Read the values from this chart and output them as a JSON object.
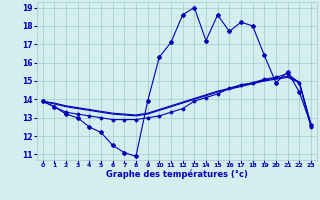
{
  "xlabel": "Graphe des températures (°c)",
  "bg_color": "#d4eeed",
  "grid_color": "#a0cccc",
  "line_color": "#0000bb",
  "xlim": [
    -0.5,
    23.5
  ],
  "ylim": [
    10.7,
    19.3
  ],
  "yticks": [
    11,
    12,
    13,
    14,
    15,
    16,
    17,
    18,
    19
  ],
  "xticks": [
    0,
    1,
    2,
    3,
    4,
    5,
    6,
    7,
    8,
    9,
    10,
    11,
    12,
    13,
    14,
    15,
    16,
    17,
    18,
    19,
    20,
    21,
    22,
    23
  ],
  "series1_x": [
    0,
    1,
    2,
    3,
    4,
    5,
    6,
    7,
    8,
    9,
    10,
    11,
    12,
    13,
    14,
    15,
    16,
    17,
    18,
    19,
    20,
    21,
    22,
    23
  ],
  "series1_y": [
    13.9,
    13.6,
    13.2,
    13.0,
    12.5,
    12.2,
    11.5,
    11.1,
    10.9,
    13.9,
    16.3,
    17.1,
    18.6,
    19.0,
    17.2,
    18.6,
    17.7,
    18.2,
    18.0,
    16.4,
    14.9,
    15.5,
    14.4,
    12.6
  ],
  "series2_x": [
    0,
    2,
    3,
    4,
    5,
    6,
    7,
    8,
    9,
    10,
    11,
    12,
    13,
    14,
    15,
    16,
    17,
    18,
    19,
    20,
    21,
    22,
    23
  ],
  "series2_y": [
    13.9,
    13.3,
    13.2,
    13.1,
    13.0,
    12.9,
    12.9,
    12.9,
    13.0,
    13.1,
    13.3,
    13.5,
    13.9,
    14.1,
    14.3,
    14.6,
    14.8,
    14.9,
    15.1,
    15.2,
    15.4,
    14.9,
    12.5
  ],
  "series3_x": [
    0,
    1,
    2,
    3,
    4,
    5,
    6,
    7,
    8,
    9,
    10,
    11,
    12,
    13,
    14,
    15,
    16,
    17,
    18,
    19,
    20,
    21,
    22,
    23
  ],
  "series3_y": [
    13.9,
    13.75,
    13.6,
    13.5,
    13.4,
    13.3,
    13.2,
    13.15,
    13.1,
    13.2,
    13.4,
    13.6,
    13.8,
    14.0,
    14.2,
    14.4,
    14.55,
    14.7,
    14.85,
    15.0,
    15.1,
    15.2,
    14.9,
    12.6
  ],
  "series4_x": [
    0,
    1,
    2,
    3,
    4,
    5,
    6,
    7,
    8,
    9,
    10,
    11,
    12,
    13,
    14,
    15,
    16,
    17,
    18,
    19,
    20,
    21,
    22,
    23
  ],
  "series4_y": [
    13.9,
    13.8,
    13.65,
    13.55,
    13.45,
    13.35,
    13.25,
    13.2,
    13.15,
    13.25,
    13.45,
    13.65,
    13.85,
    14.05,
    14.25,
    14.45,
    14.6,
    14.75,
    14.9,
    15.05,
    15.15,
    15.25,
    14.95,
    12.65
  ]
}
